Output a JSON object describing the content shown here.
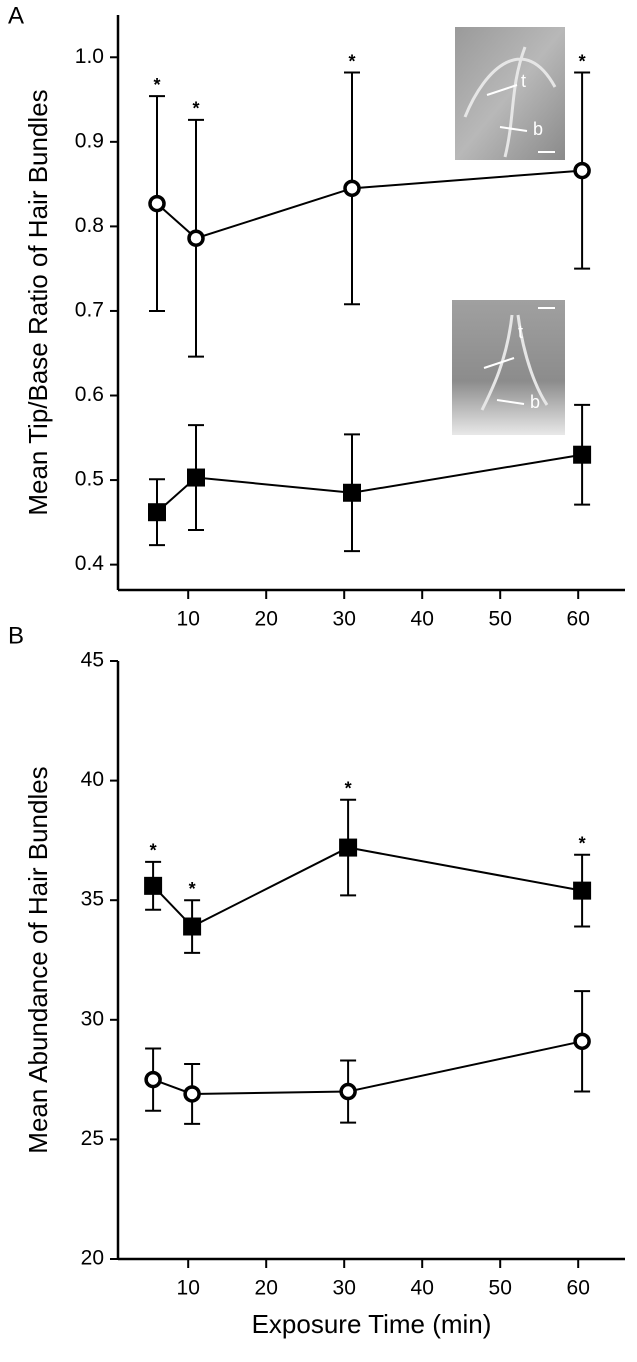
{
  "chart_data": [
    {
      "type": "line",
      "panel": "A",
      "y_label": "Mean Tip/Base Ratio of Hair Bundles",
      "x": [
        6,
        11,
        31,
        60.5
      ],
      "xlim": [
        1,
        66
      ],
      "xticks": [
        10,
        20,
        30,
        40,
        50,
        60
      ],
      "ylim": [
        0.37,
        1.05
      ],
      "yticks": [
        0.4,
        0.5,
        0.6,
        0.7,
        0.8,
        0.9,
        {
          "value": 1,
          "label": "1.0"
        }
      ],
      "series": [
        {
          "marker": "open-circle",
          "color": "#000000",
          "values": [
            0.827,
            0.786,
            0.845,
            0.866
          ],
          "errors": [
            0.127,
            0.14,
            0.137,
            0.116
          ],
          "annotations": [
            "*",
            "*",
            "*",
            "*"
          ]
        },
        {
          "marker": "filled-square",
          "color": "#000000",
          "values": [
            0.462,
            0.503,
            0.485,
            0.53
          ],
          "errors": [
            0.039,
            0.062,
            0.069,
            0.059
          ]
        }
      ],
      "insets": [
        {
          "labels": [
            "t",
            "b"
          ]
        },
        {
          "labels": [
            "t",
            "b"
          ]
        }
      ]
    },
    {
      "type": "line",
      "panel": "B",
      "y_label": "Mean Abundance of Hair Bundles",
      "x_label": "Exposure Time (min)",
      "x": [
        5.5,
        10.5,
        30.5,
        60.5
      ],
      "xlim": [
        1,
        66
      ],
      "xticks": [
        10,
        20,
        30,
        40,
        50,
        60
      ],
      "ylim": [
        20,
        45
      ],
      "yticks": [
        20,
        25,
        30,
        35,
        40,
        45
      ],
      "series": [
        {
          "marker": "filled-square",
          "color": "#000000",
          "values": [
            35.6,
            33.9,
            37.2,
            35.4
          ],
          "errors": [
            1.0,
            1.1,
            2.0,
            1.5
          ],
          "annotations": [
            "*",
            "*",
            "*",
            "*"
          ]
        },
        {
          "marker": "open-circle",
          "color": "#000000",
          "values": [
            27.5,
            26.9,
            27.0,
            29.1
          ],
          "errors": [
            1.3,
            1.25,
            1.3,
            2.1
          ]
        }
      ]
    }
  ]
}
